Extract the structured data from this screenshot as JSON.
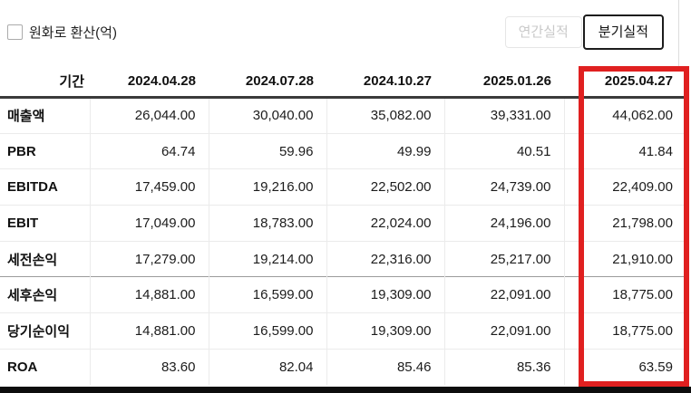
{
  "controls": {
    "checkbox_label": "원화로 환산(억)",
    "annual_button_label": "연간실적",
    "quarterly_button_label": "분기실적"
  },
  "table": {
    "period_header": "기간",
    "columns": [
      "2024.04.28",
      "2024.07.28",
      "2024.10.27",
      "2025.01.26",
      "2025.04.27"
    ],
    "highlighted_column": "2025.04.27",
    "rows": [
      {
        "label": "매출액",
        "values": [
          "26,044.00",
          "30,040.00",
          "35,082.00",
          "39,331.00",
          "44,062.00"
        ]
      },
      {
        "label": "PBR",
        "values": [
          "64.74",
          "59.96",
          "49.99",
          "40.51",
          "41.84"
        ]
      },
      {
        "label": "EBITDA",
        "values": [
          "17,459.00",
          "19,216.00",
          "22,502.00",
          "24,739.00",
          "22,409.00"
        ]
      },
      {
        "label": "EBIT",
        "values": [
          "17,049.00",
          "18,783.00",
          "22,024.00",
          "24,196.00",
          "21,798.00"
        ]
      },
      {
        "label": "세전손익",
        "values": [
          "17,279.00",
          "19,214.00",
          "22,316.00",
          "25,217.00",
          "21,910.00"
        ]
      },
      {
        "label": "세후손익",
        "values": [
          "14,881.00",
          "16,599.00",
          "19,309.00",
          "22,091.00",
          "18,775.00"
        ],
        "group_separator": true
      },
      {
        "label": "당기순이익",
        "values": [
          "14,881.00",
          "16,599.00",
          "19,309.00",
          "22,091.00",
          "18,775.00"
        ]
      },
      {
        "label": "ROA",
        "values": [
          "83.60",
          "82.04",
          "85.46",
          "85.36",
          "63.59"
        ]
      }
    ]
  },
  "colors": {
    "highlight_border": "#e02020",
    "header_rule": "#3a3a3a",
    "bottom_bar": "#0d0d0d"
  }
}
